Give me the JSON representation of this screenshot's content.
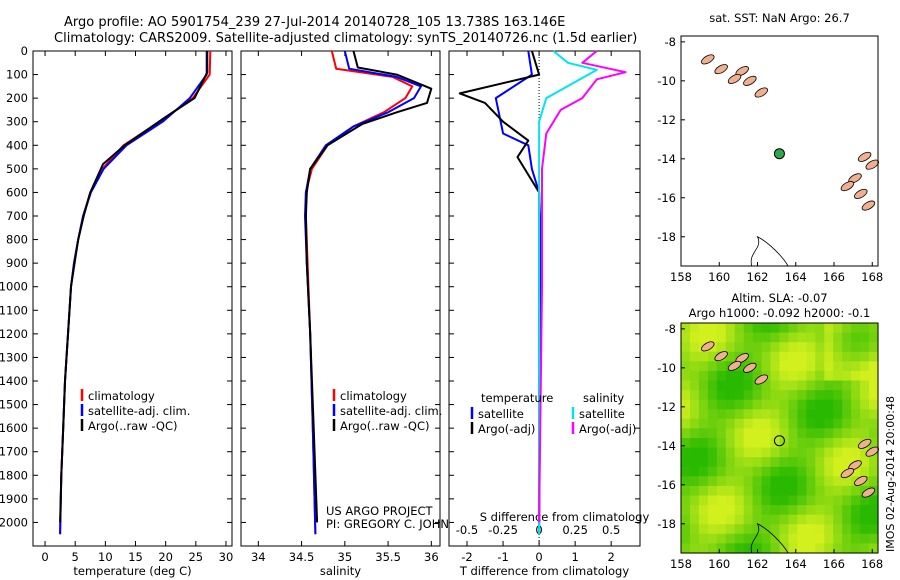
{
  "header": {
    "line1": "Argo profile: AO 5901754_239 27-Jul-2014 20140728_105 13.738S 163.146E",
    "line2": "Climatology: CARS2009. Satellite-adjusted climatology: synTS_20140726.nc (1.5d earlier)"
  },
  "colors": {
    "climatology": "#ff0000",
    "satellite": "#0000ff",
    "argo": "#000000",
    "salinity_satellite": "#00e5ee",
    "salinity_argo": "#ff00ff"
  },
  "depth_axis": {
    "ylim": [
      2100,
      0
    ],
    "ticks": [
      "0",
      "100",
      "200",
      "300",
      "400",
      "500",
      "600",
      "700",
      "800",
      "900",
      "1000",
      "1100",
      "1200",
      "1300",
      "1400",
      "1500",
      "1600",
      "1700",
      "1800",
      "1900",
      "2000"
    ]
  },
  "chart_data": [
    {
      "type": "line",
      "xlabel": "temperature (deg C)",
      "ylabel": "",
      "xlim": [
        -2,
        31
      ],
      "xticks": [
        "0",
        "5",
        "10",
        "15",
        "20",
        "25",
        "30"
      ],
      "legend": [
        "climatology",
        "satellite-adj. clim.",
        "Argo(..raw -QC)"
      ],
      "series": [
        {
          "name": "climatology",
          "color": "#ff0000",
          "points": [
            [
              27.4,
              0
            ],
            [
              27.3,
              100
            ],
            [
              24.5,
              200
            ],
            [
              19,
              300
            ],
            [
              13,
              400
            ],
            [
              9.5,
              500
            ],
            [
              7.5,
              600
            ],
            [
              6.3,
              700
            ],
            [
              5.5,
              800
            ],
            [
              4.8,
              900
            ],
            [
              4.3,
              1000
            ],
            [
              3.8,
              1200
            ],
            [
              3.3,
              1400
            ],
            [
              3.0,
              1600
            ],
            [
              2.7,
              1800
            ],
            [
              2.5,
              2050
            ]
          ]
        },
        {
          "name": "satellite-adj. clim.",
          "color": "#0000ff",
          "points": [
            [
              26.8,
              0
            ],
            [
              26.8,
              100
            ],
            [
              24,
              200
            ],
            [
              19.5,
              300
            ],
            [
              13.5,
              400
            ],
            [
              9.7,
              500
            ],
            [
              7.6,
              600
            ],
            [
              6.3,
              700
            ],
            [
              5.5,
              800
            ],
            [
              4.8,
              900
            ],
            [
              4.3,
              1000
            ],
            [
              3.8,
              1200
            ],
            [
              3.3,
              1400
            ],
            [
              3.0,
              1600
            ],
            [
              2.7,
              1800
            ],
            [
              2.5,
              2050
            ]
          ]
        },
        {
          "name": "Argo(..raw -QC)",
          "color": "#000000",
          "points": [
            [
              26.9,
              0
            ],
            [
              26.9,
              90
            ],
            [
              24.8,
              200
            ],
            [
              20,
              280
            ],
            [
              13.2,
              400
            ],
            [
              9.6,
              480
            ],
            [
              7.5,
              600
            ],
            [
              6.4,
              700
            ],
            [
              5.5,
              800
            ],
            [
              4.9,
              900
            ],
            [
              4.3,
              1000
            ],
            [
              3.8,
              1200
            ],
            [
              3.3,
              1400
            ],
            [
              3.0,
              1600
            ],
            [
              2.7,
              1800
            ],
            [
              2.5,
              2000
            ]
          ]
        }
      ]
    },
    {
      "type": "line",
      "xlabel": "salinity",
      "ylabel": "",
      "xlim": [
        33.8,
        36.1
      ],
      "xticks": [
        "34",
        "34.5",
        "35",
        "35.5",
        "36"
      ],
      "legend": [
        "climatology",
        "satellite-adj. clim.",
        "Argo(..raw -QC)"
      ],
      "series": [
        {
          "name": "climatology",
          "color": "#ff0000",
          "points": [
            [
              34.85,
              0
            ],
            [
              34.9,
              75
            ],
            [
              35.55,
              110
            ],
            [
              35.78,
              150
            ],
            [
              35.7,
              200
            ],
            [
              35.45,
              260
            ],
            [
              35.1,
              320
            ],
            [
              34.8,
              400
            ],
            [
              34.62,
              500
            ],
            [
              34.55,
              600
            ],
            [
              34.55,
              700
            ],
            [
              34.57,
              900
            ],
            [
              34.6,
              1200
            ],
            [
              34.63,
              1600
            ],
            [
              34.66,
              2050
            ]
          ]
        },
        {
          "name": "satellite-adj. clim.",
          "color": "#0000ff",
          "points": [
            [
              35.0,
              0
            ],
            [
              35.05,
              75
            ],
            [
              35.6,
              110
            ],
            [
              35.88,
              150
            ],
            [
              35.8,
              200
            ],
            [
              35.5,
              260
            ],
            [
              35.1,
              320
            ],
            [
              34.78,
              400
            ],
            [
              34.6,
              500
            ],
            [
              34.55,
              600
            ],
            [
              34.54,
              700
            ],
            [
              34.56,
              900
            ],
            [
              34.6,
              1200
            ],
            [
              34.63,
              1600
            ],
            [
              34.66,
              2050
            ]
          ]
        },
        {
          "name": "Argo(..raw -QC)",
          "color": "#000000",
          "points": [
            [
              35.1,
              0
            ],
            [
              35.15,
              70
            ],
            [
              35.6,
              100
            ],
            [
              36.0,
              160
            ],
            [
              35.95,
              220
            ],
            [
              35.6,
              260
            ],
            [
              35.2,
              310
            ],
            [
              34.8,
              400
            ],
            [
              34.6,
              500
            ],
            [
              34.56,
              600
            ],
            [
              34.55,
              700
            ],
            [
              34.56,
              900
            ],
            [
              34.6,
              1200
            ],
            [
              34.64,
              1600
            ],
            [
              34.68,
              2000
            ]
          ]
        }
      ],
      "annotation": [
        "US ARGO PROJECT",
        "PI: GREGORY C. JOHNSON"
      ]
    },
    {
      "type": "line",
      "xlabel": "T difference from climatology",
      "x2label": "S difference from climatology",
      "xlim": [
        -2.5,
        2.8
      ],
      "xticks": [
        "-2",
        "-1",
        "0",
        "1",
        "2"
      ],
      "x2lim": [
        -0.625,
        0.7
      ],
      "x2ticks": [
        "-0.5",
        "-0.25",
        "0",
        "0.25",
        "0.5"
      ],
      "legend_temperature": "temperature",
      "legend_salinity": "salinity",
      "legend": [
        "satellite",
        "Argo(-adj)",
        "satellite",
        "Argo(-adj)"
      ],
      "series": [
        {
          "name": "satellite",
          "color": "#0000ff",
          "axis": "T",
          "points": [
            [
              -0.3,
              0
            ],
            [
              -0.2,
              100
            ],
            [
              -1.2,
              200
            ],
            [
              -1.0,
              350
            ],
            [
              -0.3,
              400
            ],
            [
              -0.2,
              500
            ],
            [
              0,
              600
            ],
            [
              0.05,
              800
            ],
            [
              0,
              2050
            ]
          ]
        },
        {
          "name": "Argo(-adj)",
          "color": "#000000",
          "axis": "T",
          "points": [
            [
              -0.2,
              0
            ],
            [
              0,
              100
            ],
            [
              -2.2,
              180
            ],
            [
              -1.5,
              220
            ],
            [
              -1.0,
              300
            ],
            [
              -0.3,
              380
            ],
            [
              -0.6,
              450
            ],
            [
              -0.4,
              500
            ],
            [
              0,
              600
            ],
            [
              0,
              800
            ],
            [
              0,
              2000
            ]
          ]
        },
        {
          "name": "satellite",
          "color": "#00e5ee",
          "axis": "S",
          "points": [
            [
              0.1,
              0
            ],
            [
              0.2,
              50
            ],
            [
              0.4,
              80
            ],
            [
              0.05,
              200
            ],
            [
              0.0,
              300
            ],
            [
              0.0,
              600
            ],
            [
              0.0,
              2050
            ]
          ]
        },
        {
          "name": "Argo(-adj)",
          "color": "#ff00ff",
          "axis": "S",
          "points": [
            [
              0.4,
              0
            ],
            [
              0.3,
              50
            ],
            [
              0.6,
              90
            ],
            [
              0.4,
              120
            ],
            [
              0.3,
              200
            ],
            [
              0.15,
              250
            ],
            [
              0.05,
              350
            ],
            [
              0.02,
              500
            ],
            [
              0.02,
              1000
            ],
            [
              0.0,
              2000
            ]
          ]
        }
      ]
    }
  ],
  "maps": {
    "sst_title": "sat. SST: NaN Argo: 26.7",
    "sla_title_line1": "Altim. SLA: -0.07",
    "sla_title_line2": "Argo h1000: -0.092 h2000: -0.1",
    "lon_ticks": [
      "158",
      "160",
      "162",
      "164",
      "166",
      "168"
    ],
    "lat_ticks": [
      "-8",
      "-10",
      "-12",
      "-14",
      "-16",
      "-18"
    ],
    "lon_range": [
      158,
      168.3
    ],
    "lat_range": [
      -19.5,
      -7.7
    ],
    "float_position": {
      "lon": 163.146,
      "lat": -13.738
    }
  },
  "footer": {
    "vertical_label": "IMOS 02-Aug-2014 20:00:48"
  }
}
